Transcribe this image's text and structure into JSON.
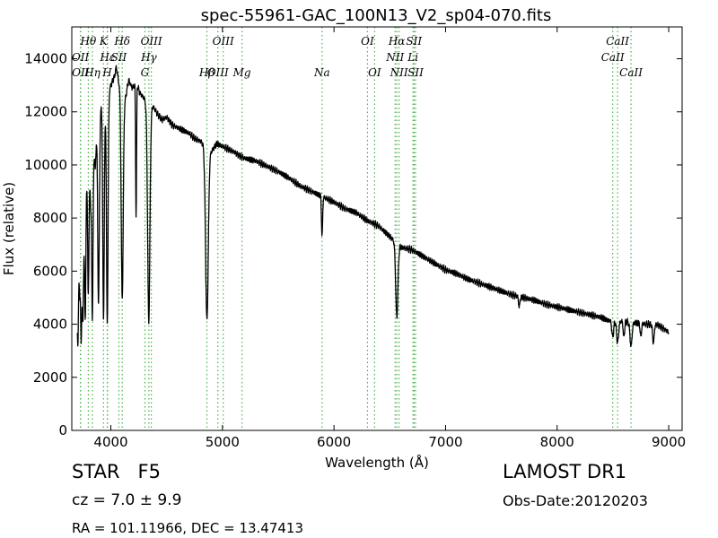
{
  "chart_data": {
    "type": "line",
    "title": "spec-55961-GAC_100N13_V2_sp04-070.fits",
    "xlabel": "Wavelength (Å)",
    "ylabel": "Flux (relative)",
    "xlim": [
      3650,
      9120
    ],
    "ylim": [
      0,
      15200
    ],
    "xticks": [
      4000,
      5000,
      6000,
      7000,
      8000,
      9000
    ],
    "yticks": [
      0,
      2000,
      4000,
      6000,
      8000,
      10000,
      12000,
      14000
    ],
    "grid": false,
    "line_color": "#000000",
    "marker_color": "#4daf4a",
    "spectral_lines": [
      {
        "label": "Hθ",
        "wavelength": 3798,
        "row": 0
      },
      {
        "label": "K",
        "wavelength": 3934,
        "row": 0
      },
      {
        "label": "Hδ",
        "wavelength": 4102,
        "row": 0
      },
      {
        "label": "OIII",
        "wavelength": 4363,
        "row": 0
      },
      {
        "label": "OIII",
        "wavelength": 5007,
        "row": 0
      },
      {
        "label": "OI",
        "wavelength": 6300,
        "row": 0
      },
      {
        "label": "Hα",
        "wavelength": 6563,
        "row": 0
      },
      {
        "label": "SII",
        "wavelength": 6717,
        "row": 0
      },
      {
        "label": "CaII",
        "wavelength": 8542,
        "row": 0
      },
      {
        "label": "OII",
        "wavelength": 3727,
        "row": 1
      },
      {
        "label": "Hε",
        "wavelength": 3970,
        "row": 1
      },
      {
        "label": "SII",
        "wavelength": 4072,
        "row": 1
      },
      {
        "label": "Hγ",
        "wavelength": 4341,
        "row": 1
      },
      {
        "label": "NII",
        "wavelength": 6548,
        "row": 1
      },
      {
        "label": "Li",
        "wavelength": 6708,
        "row": 1
      },
      {
        "label": "CaII",
        "wavelength": 8498,
        "row": 1
      },
      {
        "label": "OII",
        "wavelength": 3729,
        "row": 2
      },
      {
        "label": "Hη",
        "wavelength": 3835,
        "row": 2
      },
      {
        "label": "H",
        "wavelength": 3968,
        "row": 2
      },
      {
        "label": "G",
        "wavelength": 4305,
        "row": 2
      },
      {
        "label": "Hβ",
        "wavelength": 4861,
        "row": 2
      },
      {
        "label": "OIII",
        "wavelength": 4959,
        "row": 2
      },
      {
        "label": "Mg",
        "wavelength": 5175,
        "row": 2
      },
      {
        "label": "Na",
        "wavelength": 5893,
        "row": 2
      },
      {
        "label": "OI",
        "wavelength": 6364,
        "row": 2
      },
      {
        "label": "NII",
        "wavelength": 6583,
        "row": 2
      },
      {
        "label": "SII",
        "wavelength": 6731,
        "row": 2
      },
      {
        "label": "CaII",
        "wavelength": 8662,
        "row": 2
      }
    ],
    "spectrum_nodes": [
      [
        3700,
        4700
      ],
      [
        3720,
        6500
      ],
      [
        3740,
        5200
      ],
      [
        3760,
        7200
      ],
      [
        3780,
        9300
      ],
      [
        3800,
        10800
      ],
      [
        3820,
        8500
      ],
      [
        3840,
        11200
      ],
      [
        3860,
        9800
      ],
      [
        3880,
        12000
      ],
      [
        3900,
        11500
      ],
      [
        3920,
        12600
      ],
      [
        3960,
        12400
      ],
      [
        4000,
        13000
      ],
      [
        4030,
        13300
      ],
      [
        4050,
        13700
      ],
      [
        4070,
        13100
      ],
      [
        4130,
        12500
      ],
      [
        4160,
        13200
      ],
      [
        4190,
        12900
      ],
      [
        4230,
        13100
      ],
      [
        4260,
        12700
      ],
      [
        4300,
        12500
      ],
      [
        4330,
        12100
      ],
      [
        4380,
        12200
      ],
      [
        4420,
        11900
      ],
      [
        4460,
        11700
      ],
      [
        4500,
        11800
      ],
      [
        4550,
        11500
      ],
      [
        4600,
        11400
      ],
      [
        4650,
        11300
      ],
      [
        4700,
        11200
      ],
      [
        4750,
        11000
      ],
      [
        4800,
        10900
      ],
      [
        4900,
        10500
      ],
      [
        4950,
        10800
      ],
      [
        5000,
        10700
      ],
      [
        5050,
        10600
      ],
      [
        5100,
        10500
      ],
      [
        5150,
        10350
      ],
      [
        5200,
        10250
      ],
      [
        5250,
        10200
      ],
      [
        5300,
        10150
      ],
      [
        5400,
        9950
      ],
      [
        5500,
        9750
      ],
      [
        5600,
        9500
      ],
      [
        5700,
        9200
      ],
      [
        5800,
        9000
      ],
      [
        5900,
        8800
      ],
      [
        6000,
        8600
      ],
      [
        6100,
        8350
      ],
      [
        6200,
        8200
      ],
      [
        6300,
        7900
      ],
      [
        6400,
        7700
      ],
      [
        6500,
        7300
      ],
      [
        6600,
        6900
      ],
      [
        6700,
        6800
      ],
      [
        6800,
        6550
      ],
      [
        6900,
        6300
      ],
      [
        7000,
        6050
      ],
      [
        7100,
        5900
      ],
      [
        7200,
        5700
      ],
      [
        7300,
        5550
      ],
      [
        7400,
        5400
      ],
      [
        7500,
        5250
      ],
      [
        7600,
        5100
      ],
      [
        7700,
        5000
      ],
      [
        7800,
        4900
      ],
      [
        7900,
        4750
      ],
      [
        8000,
        4650
      ],
      [
        8100,
        4550
      ],
      [
        8200,
        4450
      ],
      [
        8300,
        4350
      ],
      [
        8400,
        4250
      ],
      [
        8450,
        4150
      ],
      [
        8500,
        4120
      ],
      [
        8600,
        4100
      ],
      [
        8700,
        4050
      ],
      [
        8800,
        4000
      ],
      [
        8900,
        3980
      ],
      [
        9000,
        3700
      ]
    ],
    "absorption_features": [
      {
        "wavelength": 3705,
        "depth": 2000,
        "width": 4
      },
      {
        "wavelength": 3722,
        "depth": 1500,
        "width": 4
      },
      {
        "wavelength": 3734,
        "depth": 2200,
        "width": 4
      },
      {
        "wavelength": 3750,
        "depth": 2000,
        "width": 5
      },
      {
        "wavelength": 3771,
        "depth": 4200,
        "width": 5
      },
      {
        "wavelength": 3798,
        "depth": 5500,
        "width": 6
      },
      {
        "wavelength": 3835,
        "depth": 6200,
        "width": 6
      },
      {
        "wavelength": 3889,
        "depth": 7000,
        "width": 7
      },
      {
        "wavelength": 3934,
        "depth": 8200,
        "width": 7
      },
      {
        "wavelength": 3968,
        "depth": 8400,
        "width": 7
      },
      {
        "wavelength": 4102,
        "depth": 7800,
        "width": 9
      },
      {
        "wavelength": 4226,
        "depth": 5000,
        "width": 4
      },
      {
        "wavelength": 4340,
        "depth": 8000,
        "width": 10
      },
      {
        "wavelength": 4861,
        "depth": 6500,
        "width": 12
      },
      {
        "wavelength": 5893,
        "depth": 1500,
        "width": 5
      },
      {
        "wavelength": 6563,
        "depth": 2800,
        "width": 10
      },
      {
        "wavelength": 7660,
        "depth": 400,
        "width": 6
      },
      {
        "wavelength": 8498,
        "depth": 600,
        "width": 8
      },
      {
        "wavelength": 8542,
        "depth": 800,
        "width": 9
      },
      {
        "wavelength": 8598,
        "depth": 600,
        "width": 6
      },
      {
        "wavelength": 8662,
        "depth": 900,
        "width": 9
      },
      {
        "wavelength": 8750,
        "depth": 500,
        "width": 6
      },
      {
        "wavelength": 8863,
        "depth": 700,
        "width": 7
      }
    ]
  },
  "info": {
    "class_label": "STAR",
    "subclass": "F5",
    "survey": "LAMOST DR1",
    "cz_text": "cz = 7.0 ± 9.9",
    "obs_date": "Obs-Date:20120203",
    "coords": "RA = 101.11966, DEC = 13.47413"
  }
}
